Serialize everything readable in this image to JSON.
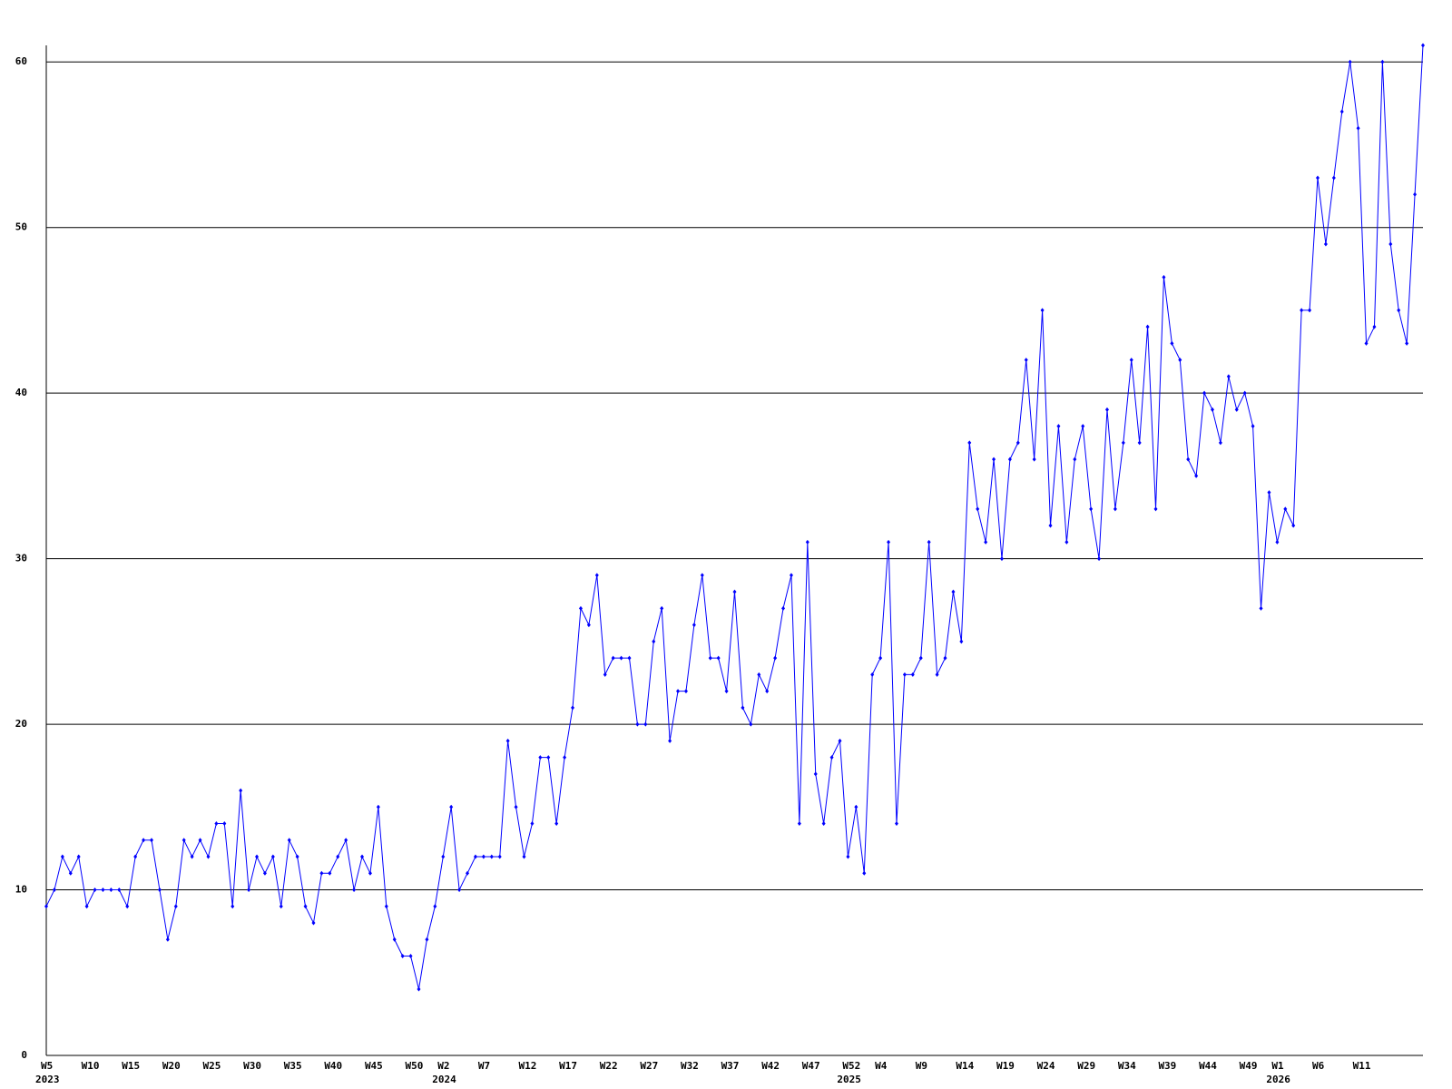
{
  "chart_data": {
    "type": "line",
    "categories": [
      "W5",
      null,
      null,
      null,
      null,
      "W10",
      null,
      null,
      null,
      null,
      "W15",
      null,
      null,
      null,
      null,
      "W20",
      null,
      null,
      null,
      null,
      "W25",
      null,
      null,
      null,
      null,
      "W30",
      null,
      null,
      null,
      null,
      "W35",
      null,
      null,
      null,
      null,
      "W40",
      null,
      null,
      null,
      null,
      "W45",
      null,
      null,
      null,
      null,
      "W50",
      null,
      null,
      null,
      "W2",
      null,
      null,
      null,
      null,
      "W7",
      null,
      null,
      null,
      null,
      "W12",
      null,
      null,
      null,
      null,
      "W17",
      null,
      null,
      null,
      null,
      "W22",
      null,
      null,
      null,
      null,
      "W27",
      null,
      null,
      null,
      null,
      "W32",
      null,
      null,
      null,
      null,
      "W37",
      null,
      null,
      null,
      null,
      "W42",
      null,
      null,
      null,
      null,
      "W47",
      null,
      null,
      null,
      null,
      "W52",
      null,
      null,
      null,
      "W4",
      null,
      null,
      null,
      null,
      "W9",
      null,
      null,
      null,
      null,
      "W14",
      null,
      null,
      null,
      null,
      "W19",
      null,
      null,
      null,
      null,
      "W24",
      null,
      null,
      null,
      null,
      "W29",
      null,
      null,
      null,
      null,
      "W34",
      null,
      null,
      null,
      null,
      "W39",
      null,
      null,
      null,
      null,
      "W44",
      null,
      null,
      null,
      null,
      "W49",
      null,
      null,
      null,
      "W1",
      null,
      null,
      null,
      null,
      "W6",
      null,
      null,
      null,
      null,
      "W11",
      null,
      null,
      null,
      null,
      null,
      null,
      null,
      null
    ],
    "x_year_labels": [
      "2023",
      null,
      null,
      null,
      null,
      null,
      null,
      null,
      null,
      null,
      null,
      null,
      null,
      null,
      null,
      null,
      null,
      null,
      null,
      null,
      null,
      null,
      null,
      null,
      null,
      null,
      null,
      null,
      null,
      null,
      null,
      null,
      null,
      null,
      null,
      null,
      null,
      null,
      null,
      null,
      null,
      null,
      null,
      null,
      null,
      null,
      null,
      null,
      null,
      "2024",
      null,
      null,
      null,
      null,
      null,
      null,
      null,
      null,
      null,
      null,
      null,
      null,
      null,
      null,
      null,
      null,
      null,
      null,
      null,
      null,
      null,
      null,
      null,
      null,
      null,
      null,
      null,
      null,
      null,
      null,
      null,
      null,
      null,
      null,
      null,
      null,
      null,
      null,
      null,
      null,
      null,
      null,
      null,
      null,
      null,
      null,
      null,
      null,
      null,
      "2025",
      null,
      null,
      null,
      null,
      null,
      null,
      null,
      null,
      null,
      null,
      null,
      null,
      null,
      null,
      null,
      null,
      null,
      null,
      null,
      null,
      null,
      null,
      null,
      null,
      null,
      null,
      null,
      null,
      null,
      null,
      null,
      null,
      null,
      null,
      null,
      null,
      null,
      null,
      null,
      null,
      null,
      null,
      null,
      null,
      null,
      null,
      null,
      null,
      null,
      null,
      null,
      null,
      "2026",
      null,
      null,
      null,
      null,
      null,
      null,
      null,
      null,
      null,
      null,
      null,
      null,
      null,
      null,
      null,
      null,
      null,
      null
    ],
    "values": [
      9,
      10,
      12,
      11,
      12,
      9,
      10,
      10,
      10,
      10,
      9,
      12,
      13,
      13,
      10,
      7,
      9,
      13,
      12,
      13,
      12,
      14,
      14,
      9,
      16,
      10,
      12,
      11,
      12,
      9,
      13,
      12,
      9,
      8,
      11,
      11,
      12,
      13,
      10,
      12,
      11,
      15,
      9,
      7,
      6,
      6,
      4,
      7,
      9,
      12,
      15,
      10,
      11,
      12,
      12,
      12,
      12,
      19,
      15,
      12,
      14,
      18,
      18,
      14,
      18,
      21,
      27,
      26,
      29,
      23,
      24,
      24,
      24,
      20,
      20,
      25,
      27,
      19,
      22,
      22,
      26,
      29,
      24,
      24,
      22,
      28,
      21,
      20,
      23,
      22,
      24,
      27,
      29,
      14,
      31,
      17,
      14,
      18,
      19,
      12,
      15,
      11,
      23,
      24,
      31,
      14,
      23,
      23,
      24,
      31,
      23,
      24,
      28,
      25,
      37,
      33,
      31,
      36,
      30,
      36,
      37,
      42,
      36,
      45,
      32,
      38,
      31,
      36,
      38,
      33,
      30,
      39,
      33,
      37,
      42,
      37,
      44,
      33,
      47,
      43,
      42,
      36,
      35,
      40,
      39,
      37,
      41,
      39,
      40,
      38,
      27,
      34,
      31,
      33,
      32,
      45,
      45,
      53,
      49,
      53,
      57,
      60,
      56,
      43,
      44,
      60,
      49,
      45,
      43,
      52,
      61
    ],
    "color": "#0000ff",
    "ylim": [
      0,
      61
    ],
    "yticks": [
      0,
      10,
      20,
      30,
      40,
      50,
      60
    ],
    "grid": true
  }
}
